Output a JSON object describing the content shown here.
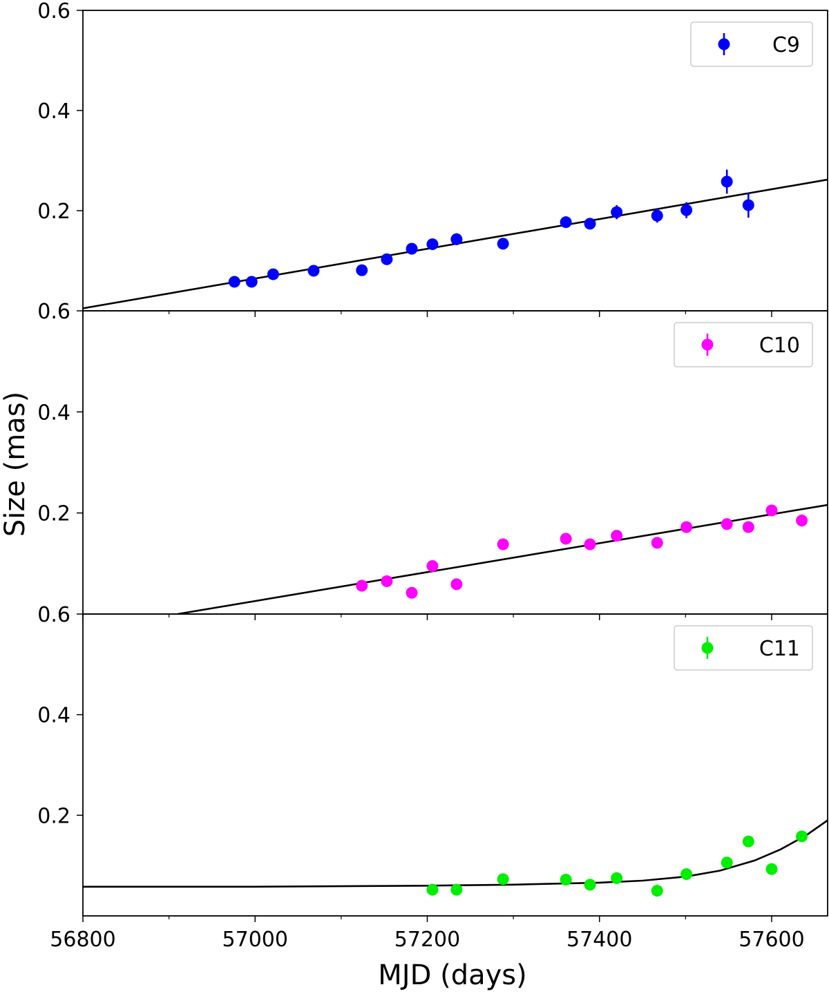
{
  "chart_data": {
    "type": "scatter",
    "layout": "3 vertically stacked panels sharing x axis",
    "xlabel": "MJD (days)",
    "ylabel": "Size (mas)",
    "xlim": [
      56800,
      57665
    ],
    "x_ticks": [
      "56800",
      "57000",
      "57200",
      "57400",
      "57600"
    ],
    "x_tick_values": [
      56800,
      57000,
      57200,
      57400,
      57600
    ],
    "x_minor_step": 100,
    "ylim": [
      0,
      0.6
    ],
    "grid": false,
    "panels": [
      {
        "id": "C9",
        "color": "#0000ff",
        "y_ticks": [
          {
            "value": 0.2,
            "label": "0.2"
          },
          {
            "value": 0.4,
            "label": "0.4"
          },
          {
            "value": 0.6,
            "label": "0.6"
          }
        ],
        "legend": {
          "label": "C9",
          "position": "upper right"
        },
        "series": {
          "name": "C9",
          "x": [
            56976,
            56996,
            57021,
            57068,
            57124,
            57153,
            57182,
            57206,
            57234,
            57288,
            57361,
            57389,
            57420,
            57467,
            57501,
            57548,
            57573
          ],
          "y": [
            0.058,
            0.058,
            0.073,
            0.08,
            0.081,
            0.103,
            0.124,
            0.133,
            0.143,
            0.134,
            0.177,
            0.174,
            0.197,
            0.19,
            0.201,
            0.258,
            0.211
          ],
          "yerr": [
            0.005,
            0.005,
            0.006,
            0.006,
            0.006,
            0.006,
            0.007,
            0.007,
            0.012,
            0.008,
            0.008,
            0.008,
            0.014,
            0.014,
            0.016,
            0.024,
            0.025
          ]
        },
        "fit": {
          "type": "linear",
          "x": [
            56800,
            57665
          ],
          "y": [
            0.005,
            0.262
          ]
        }
      },
      {
        "id": "C10",
        "color": "#ff00ff",
        "y_ticks": [
          {
            "value": 0.2,
            "label": "0.2"
          },
          {
            "value": 0.4,
            "label": "0.4"
          },
          {
            "value": 0.6,
            "label": "0.6"
          }
        ],
        "legend": {
          "label": "C10",
          "position": "upper right"
        },
        "series": {
          "name": "C10",
          "x": [
            57124,
            57153,
            57182,
            57206,
            57234,
            57288,
            57361,
            57389,
            57420,
            57467,
            57501,
            57548,
            57573,
            57600,
            57635
          ],
          "y": [
            0.056,
            0.065,
            0.042,
            0.095,
            0.059,
            0.138,
            0.149,
            0.138,
            0.155,
            0.141,
            0.172,
            0.178,
            0.172,
            0.205,
            0.185
          ],
          "yerr": [
            0.005,
            0.005,
            0.005,
            0.006,
            0.005,
            0.007,
            0.009,
            0.008,
            0.009,
            0.008,
            0.009,
            0.009,
            0.009,
            0.008,
            0.012
          ]
        },
        "fit": {
          "type": "linear",
          "x": [
            56910,
            57665
          ],
          "y": [
            0.0,
            0.216
          ]
        }
      },
      {
        "id": "C11",
        "color": "#00ee00",
        "y_ticks": [
          {
            "value": 0.2,
            "label": "0.2"
          },
          {
            "value": 0.4,
            "label": "0.4"
          },
          {
            "value": 0.6,
            "label": "0.6"
          }
        ],
        "legend": {
          "label": "C11",
          "position": "upper right"
        },
        "series": {
          "name": "C11",
          "x": [
            57206,
            57234,
            57288,
            57361,
            57389,
            57420,
            57467,
            57501,
            57548,
            57573,
            57600,
            57635
          ],
          "y": [
            0.052,
            0.052,
            0.073,
            0.072,
            0.062,
            0.075,
            0.05,
            0.083,
            0.106,
            0.148,
            0.093,
            0.158
          ],
          "yerr": [
            0.005,
            0.005,
            0.005,
            0.005,
            0.005,
            0.005,
            0.005,
            0.005,
            0.006,
            0.006,
            0.006,
            0.006
          ]
        },
        "fit": {
          "type": "curve",
          "x": [
            56800,
            57000,
            57200,
            57300,
            57400,
            57450,
            57500,
            57540,
            57580,
            57610,
            57640,
            57665
          ],
          "y": [
            0.058,
            0.058,
            0.06,
            0.062,
            0.066,
            0.07,
            0.078,
            0.09,
            0.11,
            0.132,
            0.16,
            0.19
          ]
        }
      }
    ]
  }
}
